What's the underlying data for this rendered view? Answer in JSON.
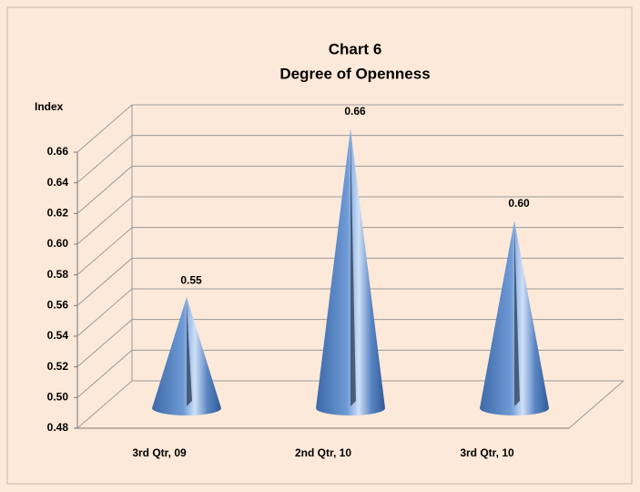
{
  "chart_data": {
    "type": "cone",
    "title": "Chart 6",
    "subtitle": "Degree of Openness",
    "y_axis_label": "Index",
    "categories": [
      "3rd Qtr, 09",
      "2nd Qtr, 10",
      "3rd Qtr, 10"
    ],
    "values": [
      0.55,
      0.66,
      0.6
    ],
    "value_labels": [
      "0.55",
      "0.66",
      "0.60"
    ],
    "color": "#4f81bd",
    "ylim": [
      0.48,
      0.66
    ],
    "yticks": [
      0.48,
      {
        "value": 0.5,
        "label": "0.50"
      },
      0.52,
      0.54,
      0.56,
      0.58,
      {
        "value": 0.6,
        "label": "0.60"
      },
      0.62,
      0.64,
      0.66
    ],
    "grid": true
  }
}
